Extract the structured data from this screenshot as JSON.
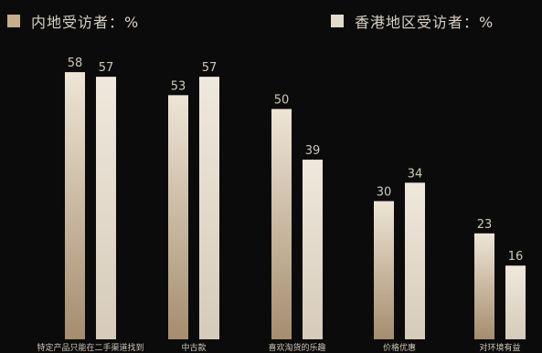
{
  "chart_data": {
    "type": "bar",
    "title": "",
    "xlabel": "",
    "ylabel": "",
    "ylim": [
      0,
      62
    ],
    "grid": false,
    "legend_position": "top",
    "categories": [
      "特定产品只能在二手渠道找到",
      "中古款",
      "喜欢淘货的乐趣",
      "价格优惠",
      "对环境有益"
    ],
    "series": [
      {
        "name": "内地受访者：%",
        "values": [
          58,
          53,
          50,
          30,
          23
        ],
        "color": "#c6ad8c"
      },
      {
        "name": "香港地区受访者：%",
        "values": [
          57,
          57,
          39,
          34,
          16
        ],
        "color": "#e3dbcc"
      }
    ]
  },
  "colors": {
    "background": "#0b0b0b",
    "label_text": "#cfc7b8",
    "series_1_top": "#eee5d6",
    "series_1_bottom": "#a58d6e",
    "series_2_top": "#efe8dc",
    "series_2_bottom": "#d6cbba"
  }
}
